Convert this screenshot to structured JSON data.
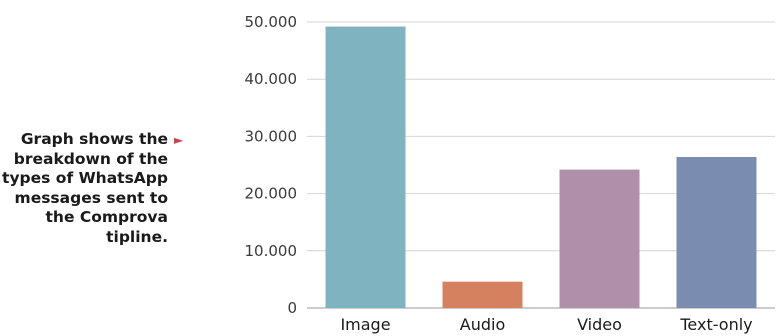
{
  "caption": "Graph shows the breakdown of the types of WhatsApp messages sent to the Comprova tipline.",
  "chart_data": {
    "type": "bar",
    "categories": [
      "Image",
      "Audio",
      "Video",
      "Text-only"
    ],
    "values": [
      49200,
      4600,
      24200,
      26400
    ],
    "colors": [
      "#7fb3bf",
      "#d5805f",
      "#b08fab",
      "#7a8cb0"
    ],
    "ylim": [
      0,
      50000
    ],
    "yticks": [
      0,
      10000,
      20000,
      30000,
      40000,
      50000
    ],
    "ytick_labels": [
      "0",
      "10.000",
      "20.000",
      "30.000",
      "40.000",
      "50.000"
    ],
    "grid": true,
    "title": "",
    "xlabel": "",
    "ylabel": ""
  }
}
